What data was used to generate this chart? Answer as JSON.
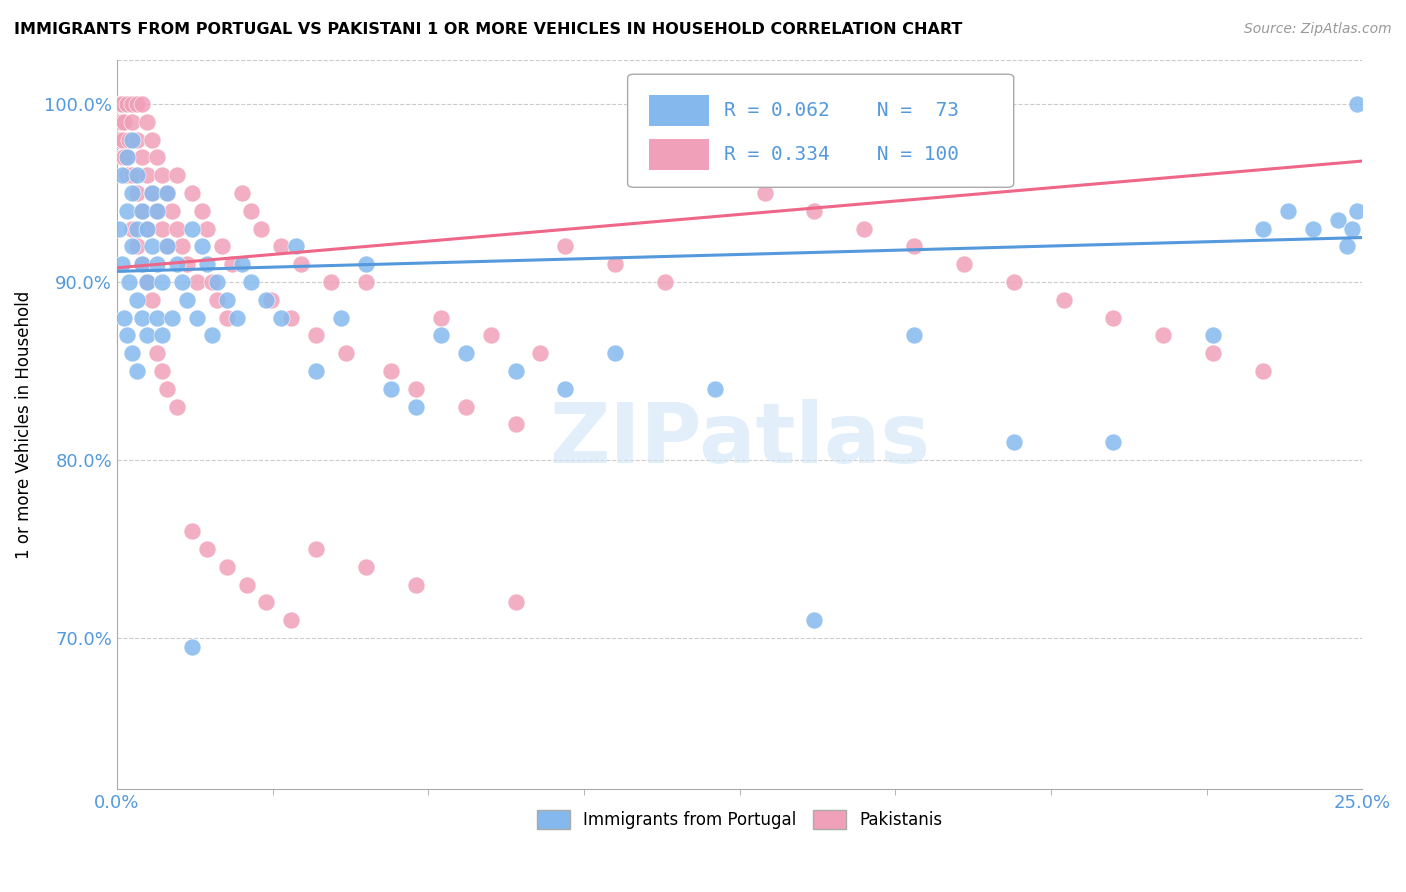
{
  "title": "IMMIGRANTS FROM PORTUGAL VS PAKISTANI 1 OR MORE VEHICLES IN HOUSEHOLD CORRELATION CHART",
  "source": "Source: ZipAtlas.com",
  "ylabel": "1 or more Vehicles in Household",
  "xlabel": "",
  "x_min": 0.0,
  "x_max": 0.25,
  "y_min": 0.615,
  "y_max": 1.025,
  "y_ticks": [
    0.7,
    0.8,
    0.9,
    1.0
  ],
  "y_tick_labels": [
    "70.0%",
    "80.0%",
    "90.0%",
    "100.0%"
  ],
  "legend_blue_label": "Immigrants from Portugal",
  "legend_pink_label": "Pakistanis",
  "blue_R": 0.062,
  "blue_N": 73,
  "pink_R": 0.334,
  "pink_N": 100,
  "blue_color": "#85b9ee",
  "pink_color": "#f0a0b8",
  "blue_line_color": "#5599dd",
  "pink_line_color": "#ee6688",
  "watermark": "ZIPatlas",
  "tick_color": "#5599dd",
  "grid_color": "#cccccc",
  "blue_x": [
    0.0005,
    0.001,
    0.001,
    0.0015,
    0.002,
    0.002,
    0.002,
    0.0025,
    0.003,
    0.003,
    0.003,
    0.003,
    0.004,
    0.004,
    0.004,
    0.004,
    0.005,
    0.005,
    0.005,
    0.006,
    0.006,
    0.006,
    0.007,
    0.007,
    0.008,
    0.008,
    0.008,
    0.009,
    0.009,
    0.01,
    0.01,
    0.011,
    0.012,
    0.013,
    0.014,
    0.015,
    0.016,
    0.017,
    0.018,
    0.019,
    0.02,
    0.022,
    0.024,
    0.025,
    0.027,
    0.03,
    0.033,
    0.036,
    0.04,
    0.045,
    0.05,
    0.055,
    0.06,
    0.065,
    0.07,
    0.08,
    0.09,
    0.1,
    0.12,
    0.14,
    0.16,
    0.18,
    0.2,
    0.22,
    0.23,
    0.235,
    0.24,
    0.245,
    0.247,
    0.248,
    0.249,
    0.249,
    0.015
  ],
  "blue_y": [
    0.93,
    0.91,
    0.96,
    0.88,
    0.87,
    0.94,
    0.97,
    0.9,
    0.92,
    0.86,
    0.95,
    0.98,
    0.89,
    0.93,
    0.96,
    0.85,
    0.88,
    0.91,
    0.94,
    0.87,
    0.9,
    0.93,
    0.92,
    0.95,
    0.88,
    0.91,
    0.94,
    0.87,
    0.9,
    0.92,
    0.95,
    0.88,
    0.91,
    0.9,
    0.89,
    0.93,
    0.88,
    0.92,
    0.91,
    0.87,
    0.9,
    0.89,
    0.88,
    0.91,
    0.9,
    0.89,
    0.88,
    0.92,
    0.85,
    0.88,
    0.91,
    0.84,
    0.83,
    0.87,
    0.86,
    0.85,
    0.84,
    0.86,
    0.84,
    0.71,
    0.87,
    0.81,
    0.81,
    0.87,
    0.93,
    0.94,
    0.93,
    0.935,
    0.92,
    0.93,
    0.94,
    1.0,
    0.695
  ],
  "pink_x": [
    0.0002,
    0.0004,
    0.0005,
    0.0006,
    0.0008,
    0.001,
    0.001,
    0.0012,
    0.0015,
    0.002,
    0.002,
    0.002,
    0.0025,
    0.003,
    0.003,
    0.003,
    0.004,
    0.004,
    0.004,
    0.005,
    0.005,
    0.005,
    0.006,
    0.006,
    0.006,
    0.007,
    0.007,
    0.008,
    0.008,
    0.009,
    0.009,
    0.01,
    0.01,
    0.011,
    0.012,
    0.012,
    0.013,
    0.014,
    0.015,
    0.016,
    0.017,
    0.018,
    0.019,
    0.02,
    0.021,
    0.022,
    0.023,
    0.025,
    0.027,
    0.029,
    0.031,
    0.033,
    0.035,
    0.037,
    0.04,
    0.043,
    0.046,
    0.05,
    0.055,
    0.06,
    0.065,
    0.07,
    0.075,
    0.08,
    0.085,
    0.09,
    0.1,
    0.11,
    0.12,
    0.13,
    0.14,
    0.15,
    0.16,
    0.17,
    0.18,
    0.19,
    0.2,
    0.21,
    0.22,
    0.23,
    0.0015,
    0.003,
    0.004,
    0.005,
    0.006,
    0.007,
    0.008,
    0.009,
    0.01,
    0.012,
    0.015,
    0.018,
    0.022,
    0.026,
    0.03,
    0.035,
    0.04,
    0.05,
    0.06,
    0.08
  ],
  "pink_y": [
    0.99,
    1.0,
    0.98,
    1.0,
    0.99,
    0.97,
    1.0,
    0.98,
    0.99,
    0.97,
    1.0,
    0.96,
    0.98,
    0.96,
    0.99,
    1.0,
    0.95,
    0.98,
    1.0,
    0.94,
    0.97,
    1.0,
    0.93,
    0.96,
    0.99,
    0.95,
    0.98,
    0.94,
    0.97,
    0.93,
    0.96,
    0.92,
    0.95,
    0.94,
    0.93,
    0.96,
    0.92,
    0.91,
    0.95,
    0.9,
    0.94,
    0.93,
    0.9,
    0.89,
    0.92,
    0.88,
    0.91,
    0.95,
    0.94,
    0.93,
    0.89,
    0.92,
    0.88,
    0.91,
    0.87,
    0.9,
    0.86,
    0.9,
    0.85,
    0.84,
    0.88,
    0.83,
    0.87,
    0.82,
    0.86,
    0.92,
    0.91,
    0.9,
    0.96,
    0.95,
    0.94,
    0.93,
    0.92,
    0.91,
    0.9,
    0.89,
    0.88,
    0.87,
    0.86,
    0.85,
    0.97,
    0.93,
    0.92,
    0.91,
    0.9,
    0.89,
    0.86,
    0.85,
    0.84,
    0.83,
    0.76,
    0.75,
    0.74,
    0.73,
    0.72,
    0.71,
    0.75,
    0.74,
    0.73,
    0.72
  ]
}
